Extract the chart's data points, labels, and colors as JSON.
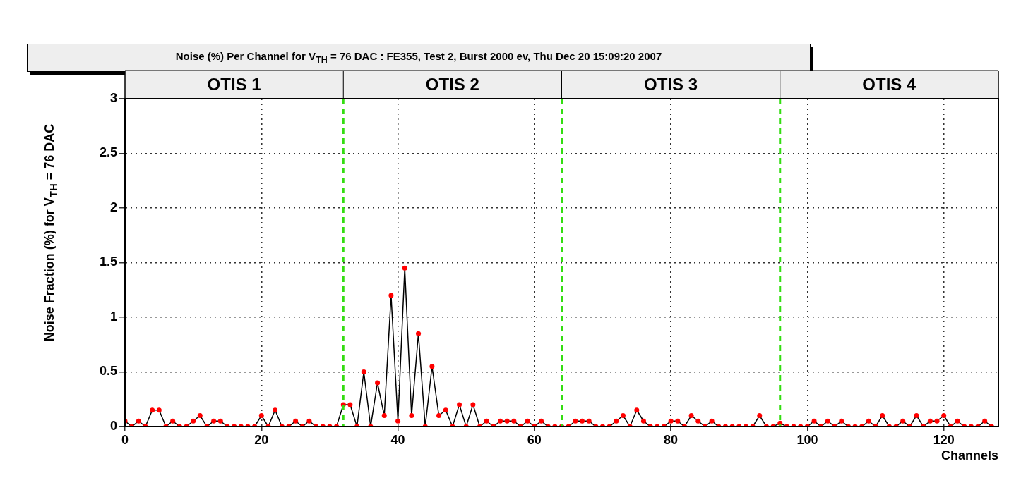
{
  "chart_data": {
    "type": "line",
    "title": "Noise (%) Per Channel for V$_{TH}$ = 76 DAC : FE355, Test 2, Burst 2000 ev, Thu Dec 20 15:09:20 2007",
    "xlabel": "Channels",
    "ylabel": "Noise Fraction (%) for V$_{TH}$ = 76 DAC",
    "x": [
      0,
      1,
      2,
      3,
      4,
      5,
      6,
      7,
      8,
      9,
      10,
      11,
      12,
      13,
      14,
      15,
      16,
      17,
      18,
      19,
      20,
      21,
      22,
      23,
      24,
      25,
      26,
      27,
      28,
      29,
      30,
      31,
      32,
      33,
      34,
      35,
      36,
      37,
      38,
      39,
      40,
      41,
      42,
      43,
      44,
      45,
      46,
      47,
      48,
      49,
      50,
      51,
      52,
      53,
      54,
      55,
      56,
      57,
      58,
      59,
      60,
      61,
      62,
      63,
      64,
      65,
      66,
      67,
      68,
      69,
      70,
      71,
      72,
      73,
      74,
      75,
      76,
      77,
      78,
      79,
      80,
      81,
      82,
      83,
      84,
      85,
      86,
      87,
      88,
      89,
      90,
      91,
      92,
      93,
      94,
      95,
      96,
      97,
      98,
      99,
      100,
      101,
      102,
      103,
      104,
      105,
      106,
      107,
      108,
      109,
      110,
      111,
      112,
      113,
      114,
      115,
      116,
      117,
      118,
      119,
      120,
      121,
      122,
      123,
      124,
      125,
      126,
      127
    ],
    "series": [
      {
        "color": "#000000",
        "colors": [
          "#ff0000",
          "#ff0000",
          "#ff0000",
          "#ff0000",
          "#ff0000",
          "#ff0000",
          "#ff0000",
          "#ff0000",
          "#ff0000",
          "#ff0000",
          "#ff0000",
          "#ff0000",
          "#ff0000",
          "#ff0000",
          "#ff0000",
          "#ff0000",
          "#ff0000",
          "#ff0000",
          "#ff0000",
          "#ff0000",
          "#ff0000",
          "#ff0000",
          "#ff0000",
          "#ff0000",
          "#ff0000",
          "#ff0000",
          "#ff0000",
          "#ff0000",
          "#ff0000",
          "#ff0000",
          "#ff0000",
          "#ff0000",
          "#ff0000",
          "#ff0000",
          "#ff0000",
          "#ff0000",
          "#ff0000",
          "#ff0000",
          "#ff0000",
          "#ff0000",
          "#ff0000",
          "#ff0000",
          "#ff0000",
          "#ff0000",
          "#ff0000",
          "#ff0000",
          "#ff0000",
          "#ff0000",
          "#ff0000",
          "#ff0000",
          "#ff0000",
          "#ff0000",
          "#ff0000",
          "#ff0000",
          "#ff0000",
          "#ff0000",
          "#ff0000",
          "#ff0000",
          "#ff0000",
          "#ff0000",
          "#ff0000",
          "#ff0000",
          "#ff0000",
          "#ff0000",
          "#ff0000",
          "#ff0000",
          "#ff0000",
          "#ff0000",
          "#ff0000",
          "#ff0000",
          "#ff0000",
          "#ff0000",
          "#ff0000",
          "#ff0000",
          "#ff0000",
          "#ff0000",
          "#ff0000",
          "#ff0000",
          "#ff0000",
          "#ff0000",
          "#ff0000",
          "#ff0000",
          "#ff0000",
          "#ff0000",
          "#ff0000",
          "#ff0000",
          "#ff0000",
          "#ff0000",
          "#ff0000",
          "#ff0000",
          "#ff0000",
          "#ff0000",
          "#ff0000",
          "#ff0000",
          "#ff0000",
          "#ff0000",
          "#ff0000",
          "#ff0000",
          "#ff0000",
          "#ff0000",
          "#ff0000",
          "#ff0000",
          "#ff0000",
          "#ff0000",
          "#ff0000",
          "#ff0000",
          "#ff0000",
          "#ff0000",
          "#ff0000",
          "#ff0000",
          "#ff0000",
          "#ff0000",
          "#ff0000",
          "#ff0000",
          "#ff0000",
          "#ff0000",
          "#ff0000",
          "#ff0000",
          "#ff0000",
          "#ff0000",
          "#ff0000",
          "#ff0000",
          "#ff0000",
          "#ff0000",
          "#ff0000",
          "#ff0000",
          "#ff0000",
          "#ff0000"
        ],
        "values": [
          0.05,
          0,
          0.05,
          0,
          0.15,
          0.15,
          0,
          0.05,
          0,
          0,
          0.05,
          0.1,
          0,
          0.05,
          0.05,
          0,
          0,
          0,
          0,
          0,
          0.1,
          0,
          0.15,
          0,
          0,
          0.05,
          0,
          0.05,
          0,
          0,
          0,
          0,
          0.2,
          0.2,
          0,
          0.5,
          0,
          0.4,
          0.1,
          1.2,
          0.05,
          1.45,
          0.1,
          0.85,
          0,
          0.55,
          0.1,
          0.15,
          0,
          0.2,
          0,
          0.2,
          0,
          0.05,
          0,
          0.05,
          0.05,
          0.05,
          0,
          0.05,
          0,
          0.05,
          0,
          0,
          0,
          0,
          0.05,
          0.05,
          0.05,
          0,
          0,
          0,
          0.05,
          0.1,
          0,
          0.15,
          0.05,
          0,
          0,
          0,
          0.05,
          0.05,
          0,
          0.1,
          0.05,
          0,
          0.05,
          0,
          0,
          0,
          0,
          0,
          0,
          0.1,
          0,
          0,
          0.03,
          0,
          0,
          0,
          0,
          0.05,
          0,
          0.05,
          0,
          0.05,
          0,
          0,
          0,
          0.05,
          0,
          0.1,
          0,
          0,
          0.05,
          0,
          0.1,
          0,
          0.05,
          0.05,
          0.1,
          0,
          0.05,
          0,
          0,
          0,
          0.05,
          0
        ]
      }
    ],
    "xlim": [
      0,
      128
    ],
    "xticks": [
      0,
      20,
      40,
      60,
      80,
      100,
      120
    ],
    "ylim": [
      0,
      3
    ],
    "yticks": [
      0,
      0.5,
      1,
      1.5,
      2,
      2.5,
      3
    ],
    "grid": true,
    "marker": "circle",
    "line_style": "solid",
    "legend": false,
    "ref_lines": [
      {
        "axis": "x",
        "value": 32,
        "color": "#33dd11",
        "line_style": "dashed"
      },
      {
        "axis": "x",
        "value": 64,
        "color": "#33dd11",
        "line_style": "dashed"
      },
      {
        "axis": "x",
        "value": 96,
        "color": "#33dd11",
        "line_style": "dashed"
      }
    ],
    "annotations": [
      "OTIS 1",
      "OTIS 2",
      "OTIS 3",
      "OTIS 4"
    ]
  }
}
